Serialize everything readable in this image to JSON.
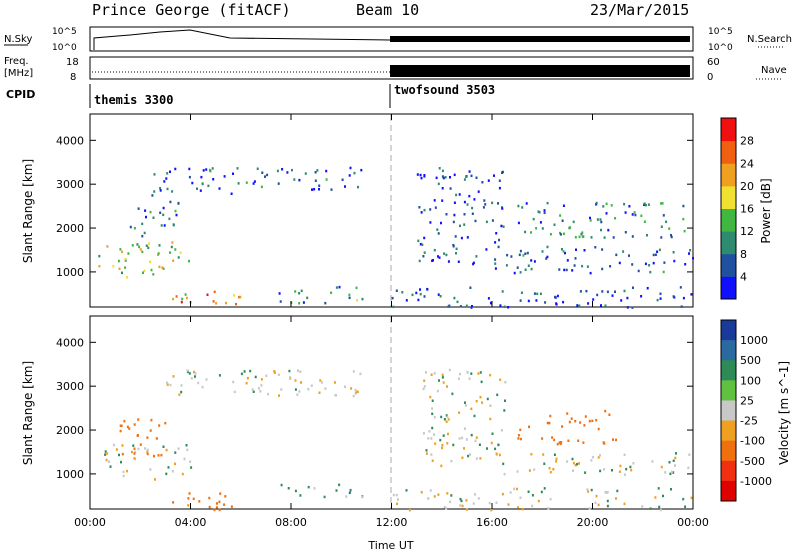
{
  "header": {
    "station": "Prince George (fitACF)",
    "beam": "Beam 10",
    "date": "23/Mar/2015"
  },
  "strips": {
    "nsky_label": "N.Sky",
    "nsearch_label": "N.Search",
    "noise_ticks_left": [
      "10^5",
      "10^0"
    ],
    "noise_ticks_right": [
      "10^5",
      "10^0"
    ],
    "freq_label": "Freq.",
    "freq_unit": "[MHz]",
    "freq_ticks": [
      "18",
      "8"
    ],
    "nave_label": "Nave",
    "nave_ticks": [
      "60",
      "0"
    ],
    "cpid_label": "CPID",
    "programs": [
      {
        "name": "themis 3300",
        "start_hour": 0
      },
      {
        "name": "twofsound 3503",
        "start_hour": 12
      }
    ]
  },
  "chart_data": [
    {
      "type": "heatmap",
      "panel": "power",
      "ylabel": "Slant Range [km]",
      "yticks": [
        "1000",
        "2000",
        "3000",
        "4000"
      ],
      "ylim": [
        200,
        4600
      ],
      "xlim_hours": [
        0,
        24
      ],
      "colorbar_label": "Power [dB]",
      "colorbar_ticks": [
        "4",
        "8",
        "12",
        "16",
        "20",
        "24",
        "28"
      ],
      "colorbar_colors": [
        "#1010ff",
        "#2050a0",
        "#2e8b70",
        "#40b840",
        "#f0e030",
        "#f0a020",
        "#f06010",
        "#f01010"
      ],
      "regions": [
        {
          "t": [
            0.3,
            4.0
          ],
          "r": [
            900,
            1700
          ],
          "level": 16
        },
        {
          "t": [
            1.5,
            3.5
          ],
          "r": [
            1800,
            2800
          ],
          "level": 8
        },
        {
          "t": [
            2.5,
            6.5
          ],
          "r": [
            2800,
            3400
          ],
          "level": 6
        },
        {
          "t": [
            6.5,
            10.8
          ],
          "r": [
            2900,
            3400
          ],
          "level": 6
        },
        {
          "t": [
            3.0,
            6.0
          ],
          "r": [
            200,
            600
          ],
          "level": 22
        },
        {
          "t": [
            7.5,
            11.0
          ],
          "r": [
            300,
            800
          ],
          "level": 10
        },
        {
          "t": [
            13.0,
            16.5
          ],
          "r": [
            1200,
            3400
          ],
          "level": 5
        },
        {
          "t": [
            16.0,
            24.0
          ],
          "r": [
            1000,
            1600
          ],
          "level": 6
        },
        {
          "t": [
            17.0,
            24.0
          ],
          "r": [
            1800,
            2600
          ],
          "level": 9
        },
        {
          "t": [
            12.0,
            24.0
          ],
          "r": [
            200,
            700
          ],
          "level": 4
        }
      ]
    },
    {
      "type": "heatmap",
      "panel": "velocity",
      "ylabel": "Slant Range [km]",
      "yticks": [
        "1000",
        "2000",
        "3000",
        "4000"
      ],
      "ylim": [
        200,
        4600
      ],
      "xlim_hours": [
        0,
        24
      ],
      "xticks": [
        "00:00",
        "04:00",
        "08:00",
        "12:00",
        "16:00",
        "20:00",
        "00:00"
      ],
      "xlabel": "Time UT",
      "colorbar_label": "Velocity [m s^-1]",
      "colorbar_ticks": [
        "1000",
        "500",
        "100",
        "25",
        "-25",
        "-100",
        "-500",
        "-1000"
      ],
      "colorbar_colors": [
        "#1a3a9a",
        "#2a6aa0",
        "#2e8b57",
        "#60c040",
        "#c8c8c8",
        "#f0a020",
        "#f07010",
        "#f03010",
        "#e00000"
      ],
      "regions": [
        {
          "t": [
            0.3,
            4.0
          ],
          "r": [
            900,
            1700
          ],
          "level": 0
        },
        {
          "t": [
            1.0,
            3.0
          ],
          "r": [
            1400,
            2300
          ],
          "level": -300
        },
        {
          "t": [
            3.0,
            6.0
          ],
          "r": [
            200,
            600
          ],
          "level": -150
        },
        {
          "t": [
            3.0,
            10.8
          ],
          "r": [
            2800,
            3400
          ],
          "level": 0
        },
        {
          "t": [
            7.5,
            11.0
          ],
          "r": [
            500,
            800
          ],
          "level": 50
        },
        {
          "t": [
            13.0,
            16.5
          ],
          "r": [
            1200,
            3400
          ],
          "level": 0
        },
        {
          "t": [
            16.0,
            24.0
          ],
          "r": [
            1000,
            1500
          ],
          "level": 0
        },
        {
          "t": [
            17.0,
            21.0
          ],
          "r": [
            1700,
            2500
          ],
          "level": -300
        },
        {
          "t": [
            12.0,
            24.0
          ],
          "r": [
            200,
            700
          ],
          "level": 0
        }
      ]
    }
  ]
}
